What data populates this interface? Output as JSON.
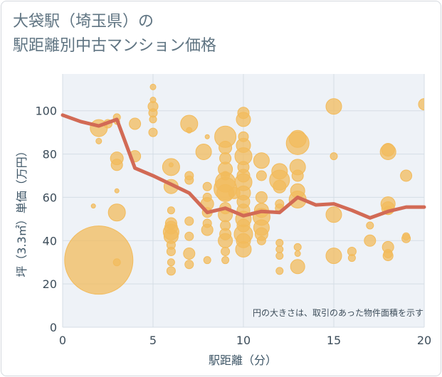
{
  "title_lines": [
    "大袋駅（埼玉県）の",
    "駅距離別中古マンション価格"
  ],
  "colors": {
    "bubble": "#f2bb5c",
    "line": "#d26a55",
    "grid": "#d5dde6",
    "plot_bg": "#eef2f7"
  },
  "chart_data": {
    "type": "scatter",
    "xlabel": "駅距離（分）",
    "ylabel": "坪（3.3㎡）単価（万円）",
    "xlim": [
      0,
      20
    ],
    "ylim": [
      0,
      117
    ],
    "xticks": [
      0,
      5,
      10,
      15,
      20
    ],
    "yticks": [
      0,
      20,
      40,
      60,
      80,
      100
    ],
    "note": "円の大きさは、取引のあった物件面積を示す",
    "grid": true,
    "bubbles": [
      {
        "x": 2,
        "y": 31,
        "size": 48
      },
      {
        "x": 3,
        "y": 30,
        "size": 5
      },
      {
        "x": 1.7,
        "y": 56,
        "size": 3
      },
      {
        "x": 2,
        "y": 86,
        "size": 4
      },
      {
        "x": 2,
        "y": 92,
        "size": 12
      },
      {
        "x": 2.5,
        "y": 94,
        "size": 6
      },
      {
        "x": 3,
        "y": 97,
        "size": 5
      },
      {
        "x": 3,
        "y": 95,
        "size": 4
      },
      {
        "x": 3,
        "y": 78,
        "size": 9
      },
      {
        "x": 3,
        "y": 75,
        "size": 8
      },
      {
        "x": 3,
        "y": 53,
        "size": 12
      },
      {
        "x": 3,
        "y": 63,
        "size": 3
      },
      {
        "x": 4,
        "y": 94,
        "size": 8
      },
      {
        "x": 4,
        "y": 79,
        "size": 8
      },
      {
        "x": 5,
        "y": 111,
        "size": 4
      },
      {
        "x": 5,
        "y": 105,
        "size": 4
      },
      {
        "x": 5,
        "y": 102,
        "size": 7
      },
      {
        "x": 5,
        "y": 99,
        "size": 6
      },
      {
        "x": 5,
        "y": 96,
        "size": 5
      },
      {
        "x": 5,
        "y": 90,
        "size": 6
      },
      {
        "x": 6,
        "y": 74,
        "size": 12
      },
      {
        "x": 6,
        "y": 75,
        "size": 3
      },
      {
        "x": 6,
        "y": 65,
        "size": 10
      },
      {
        "x": 6,
        "y": 54,
        "size": 5
      },
      {
        "x": 6,
        "y": 48,
        "size": 8
      },
      {
        "x": 6,
        "y": 46,
        "size": 9
      },
      {
        "x": 6,
        "y": 44,
        "size": 11
      },
      {
        "x": 6,
        "y": 42,
        "size": 10
      },
      {
        "x": 6,
        "y": 38,
        "size": 6
      },
      {
        "x": 6,
        "y": 35,
        "size": 6
      },
      {
        "x": 6,
        "y": 30,
        "size": 5
      },
      {
        "x": 6,
        "y": 26,
        "size": 6
      },
      {
        "x": 7,
        "y": 94,
        "size": 12
      },
      {
        "x": 7,
        "y": 91,
        "size": 4
      },
      {
        "x": 7,
        "y": 70,
        "size": 6
      },
      {
        "x": 7,
        "y": 68,
        "size": 6
      },
      {
        "x": 7,
        "y": 49,
        "size": 6
      },
      {
        "x": 7,
        "y": 42,
        "size": 6
      },
      {
        "x": 7,
        "y": 34,
        "size": 8
      },
      {
        "x": 7,
        "y": 29,
        "size": 6
      },
      {
        "x": 7.8,
        "y": 81,
        "size": 11
      },
      {
        "x": 8,
        "y": 88,
        "size": 3
      },
      {
        "x": 8,
        "y": 65,
        "size": 6
      },
      {
        "x": 8,
        "y": 60,
        "size": 6
      },
      {
        "x": 8,
        "y": 57,
        "size": 9
      },
      {
        "x": 8,
        "y": 53,
        "size": 7
      },
      {
        "x": 8,
        "y": 48,
        "size": 6
      },
      {
        "x": 8,
        "y": 45,
        "size": 8
      },
      {
        "x": 8,
        "y": 31,
        "size": 5
      },
      {
        "x": 9,
        "y": 88,
        "size": 15
      },
      {
        "x": 9,
        "y": 83,
        "size": 9
      },
      {
        "x": 9,
        "y": 78,
        "size": 8
      },
      {
        "x": 9,
        "y": 73,
        "size": 10
      },
      {
        "x": 9,
        "y": 70,
        "size": 6
      },
      {
        "x": 9,
        "y": 67,
        "size": 14
      },
      {
        "x": 9,
        "y": 64,
        "size": 16
      },
      {
        "x": 9,
        "y": 62,
        "size": 12
      },
      {
        "x": 9,
        "y": 55,
        "size": 8
      },
      {
        "x": 9,
        "y": 52,
        "size": 10
      },
      {
        "x": 9,
        "y": 47,
        "size": 7
      },
      {
        "x": 9,
        "y": 43,
        "size": 8
      },
      {
        "x": 9,
        "y": 40,
        "size": 10
      },
      {
        "x": 9,
        "y": 35,
        "size": 6
      },
      {
        "x": 9,
        "y": 31,
        "size": 5
      },
      {
        "x": 9.5,
        "y": 62,
        "size": 8
      },
      {
        "x": 10,
        "y": 99,
        "size": 8
      },
      {
        "x": 10,
        "y": 96,
        "size": 10
      },
      {
        "x": 10,
        "y": 88,
        "size": 7
      },
      {
        "x": 10,
        "y": 84,
        "size": 10
      },
      {
        "x": 10,
        "y": 79,
        "size": 12
      },
      {
        "x": 10,
        "y": 74,
        "size": 8
      },
      {
        "x": 10,
        "y": 70,
        "size": 9
      },
      {
        "x": 10,
        "y": 67,
        "size": 12
      },
      {
        "x": 10,
        "y": 62,
        "size": 10
      },
      {
        "x": 10,
        "y": 58,
        "size": 9
      },
      {
        "x": 10,
        "y": 54,
        "size": 9
      },
      {
        "x": 10,
        "y": 50,
        "size": 11
      },
      {
        "x": 10,
        "y": 47,
        "size": 9
      },
      {
        "x": 10,
        "y": 43,
        "size": 13
      },
      {
        "x": 10,
        "y": 40,
        "size": 10
      },
      {
        "x": 10,
        "y": 36,
        "size": 11
      },
      {
        "x": 11,
        "y": 77,
        "size": 11
      },
      {
        "x": 11,
        "y": 70,
        "size": 7
      },
      {
        "x": 11,
        "y": 60,
        "size": 8
      },
      {
        "x": 11,
        "y": 54,
        "size": 10
      },
      {
        "x": 11,
        "y": 51,
        "size": 12
      },
      {
        "x": 11,
        "y": 46,
        "size": 11
      },
      {
        "x": 11,
        "y": 43,
        "size": 9
      },
      {
        "x": 11,
        "y": 40,
        "size": 6
      },
      {
        "x": 12,
        "y": 72,
        "size": 11
      },
      {
        "x": 12,
        "y": 68,
        "size": 14
      },
      {
        "x": 12,
        "y": 65,
        "size": 9
      },
      {
        "x": 12,
        "y": 57,
        "size": 6
      },
      {
        "x": 12,
        "y": 55,
        "size": 6
      },
      {
        "x": 12,
        "y": 39,
        "size": 5
      },
      {
        "x": 12,
        "y": 36,
        "size": 5
      },
      {
        "x": 12,
        "y": 33,
        "size": 5
      },
      {
        "x": 12,
        "y": 26,
        "size": 5
      },
      {
        "x": 13,
        "y": 87,
        "size": 12
      },
      {
        "x": 13,
        "y": 85,
        "size": 16
      },
      {
        "x": 13,
        "y": 74,
        "size": 11
      },
      {
        "x": 13,
        "y": 70,
        "size": 8
      },
      {
        "x": 13,
        "y": 63,
        "size": 10
      },
      {
        "x": 13,
        "y": 59,
        "size": 12
      },
      {
        "x": 13,
        "y": 37,
        "size": 5
      },
      {
        "x": 13,
        "y": 34,
        "size": 4
      },
      {
        "x": 13,
        "y": 28,
        "size": 10
      },
      {
        "x": 15,
        "y": 102,
        "size": 11
      },
      {
        "x": 15,
        "y": 79,
        "size": 5
      },
      {
        "x": 15,
        "y": 52,
        "size": 11
      },
      {
        "x": 15,
        "y": 33,
        "size": 11
      },
      {
        "x": 16,
        "y": 35,
        "size": 6
      },
      {
        "x": 16,
        "y": 32,
        "size": 5
      },
      {
        "x": 17,
        "y": 47,
        "size": 5
      },
      {
        "x": 17,
        "y": 40,
        "size": 8
      },
      {
        "x": 18,
        "y": 82,
        "size": 9
      },
      {
        "x": 18,
        "y": 81,
        "size": 11
      },
      {
        "x": 18,
        "y": 57,
        "size": 10
      },
      {
        "x": 18,
        "y": 55,
        "size": 9
      },
      {
        "x": 18,
        "y": 54,
        "size": 6
      },
      {
        "x": 18,
        "y": 37,
        "size": 8
      },
      {
        "x": 18,
        "y": 34,
        "size": 6
      },
      {
        "x": 18,
        "y": 33,
        "size": 7
      },
      {
        "x": 19,
        "y": 70,
        "size": 8
      },
      {
        "x": 19,
        "y": 41,
        "size": 6
      },
      {
        "x": 19,
        "y": 42,
        "size": 5
      },
      {
        "x": 20,
        "y": 103,
        "size": 8
      }
    ],
    "trend": [
      {
        "x": 0,
        "y": 98
      },
      {
        "x": 1,
        "y": 95
      },
      {
        "x": 2,
        "y": 93
      },
      {
        "x": 3,
        "y": 96
      },
      {
        "x": 4,
        "y": 73.5
      },
      {
        "x": 5,
        "y": 70
      },
      {
        "x": 6,
        "y": 66
      },
      {
        "x": 7,
        "y": 62
      },
      {
        "x": 8,
        "y": 53
      },
      {
        "x": 9,
        "y": 55
      },
      {
        "x": 10,
        "y": 51.5
      },
      {
        "x": 11,
        "y": 53.5
      },
      {
        "x": 12,
        "y": 53
      },
      {
        "x": 13,
        "y": 60
      },
      {
        "x": 14,
        "y": 56.5
      },
      {
        "x": 15,
        "y": 57
      },
      {
        "x": 16,
        "y": 54
      },
      {
        "x": 17,
        "y": 50.5
      },
      {
        "x": 18,
        "y": 53.5
      },
      {
        "x": 19,
        "y": 55.5
      },
      {
        "x": 20,
        "y": 55.5
      }
    ]
  }
}
